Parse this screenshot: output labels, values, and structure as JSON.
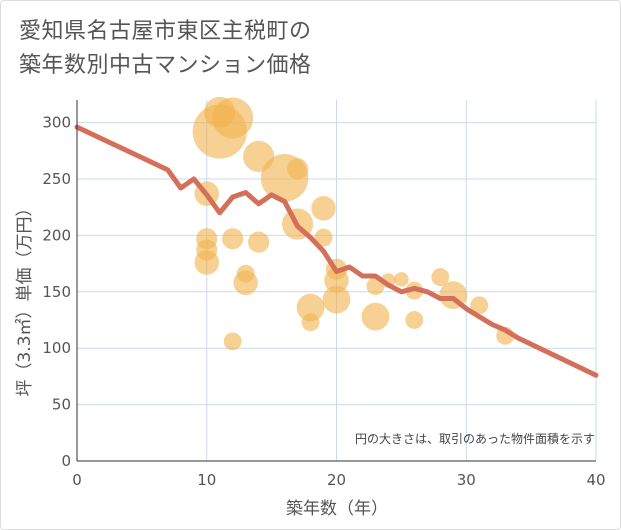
{
  "title_lines": [
    "愛知県名古屋市東区主税町の",
    "築年数別中古マンション価格"
  ],
  "chart_data": {
    "type": "scatter",
    "title": "愛知県名古屋市東区主税町の築年数別中古マンション価格",
    "xlabel": "築年数（年）",
    "ylabel": "坪（3.3㎡）単価（万円）",
    "xlim": [
      0,
      40
    ],
    "ylim": [
      0,
      320
    ],
    "xticks": [
      0,
      10,
      20,
      30,
      40
    ],
    "yticks": [
      0,
      50,
      100,
      150,
      200,
      250,
      300
    ],
    "grid": true,
    "note": "円の大きさは、取引のあった物件面積を示す",
    "colors": {
      "bubble": "#f2b24d",
      "line": "#d4705a",
      "grid": "#c9d9ec"
    },
    "series": [
      {
        "type": "bubble",
        "points": [
          {
            "x": 10,
            "y": 237,
            "size": 5
          },
          {
            "x": 10,
            "y": 197,
            "size": 4
          },
          {
            "x": 10,
            "y": 187,
            "size": 4
          },
          {
            "x": 10,
            "y": 176,
            "size": 5
          },
          {
            "x": 11,
            "y": 309,
            "size": 7
          },
          {
            "x": 11,
            "y": 292,
            "size": 14
          },
          {
            "x": 12,
            "y": 304,
            "size": 10
          },
          {
            "x": 12,
            "y": 197,
            "size": 4
          },
          {
            "x": 12,
            "y": 106,
            "size": 3
          },
          {
            "x": 13,
            "y": 166,
            "size": 3
          },
          {
            "x": 13,
            "y": 158,
            "size": 5
          },
          {
            "x": 14,
            "y": 270,
            "size": 7
          },
          {
            "x": 14,
            "y": 194,
            "size": 4
          },
          {
            "x": 16,
            "y": 251,
            "size": 12
          },
          {
            "x": 17,
            "y": 259,
            "size": 4
          },
          {
            "x": 17,
            "y": 210,
            "size": 7
          },
          {
            "x": 18,
            "y": 136,
            "size": 6
          },
          {
            "x": 18,
            "y": 123,
            "size": 3
          },
          {
            "x": 19,
            "y": 224,
            "size": 5
          },
          {
            "x": 19,
            "y": 198,
            "size": 3
          },
          {
            "x": 20,
            "y": 170,
            "size": 4
          },
          {
            "x": 20,
            "y": 160,
            "size": 5
          },
          {
            "x": 20,
            "y": 143,
            "size": 6
          },
          {
            "x": 23,
            "y": 128,
            "size": 6
          },
          {
            "x": 23,
            "y": 155,
            "size": 3
          },
          {
            "x": 24,
            "y": 160,
            "size": 2
          },
          {
            "x": 25,
            "y": 161,
            "size": 2
          },
          {
            "x": 26,
            "y": 151,
            "size": 3
          },
          {
            "x": 26,
            "y": 125,
            "size": 3
          },
          {
            "x": 28,
            "y": 163,
            "size": 3
          },
          {
            "x": 29,
            "y": 147,
            "size": 6
          },
          {
            "x": 31,
            "y": 138,
            "size": 3
          },
          {
            "x": 33,
            "y": 111,
            "size": 3
          }
        ]
      },
      {
        "type": "line",
        "points": [
          {
            "x": 0,
            "y": 296
          },
          {
            "x": 7,
            "y": 258
          },
          {
            "x": 8,
            "y": 242
          },
          {
            "x": 9,
            "y": 250
          },
          {
            "x": 10,
            "y": 236
          },
          {
            "x": 11,
            "y": 220
          },
          {
            "x": 12,
            "y": 234
          },
          {
            "x": 13,
            "y": 238
          },
          {
            "x": 14,
            "y": 228
          },
          {
            "x": 15,
            "y": 236
          },
          {
            "x": 16,
            "y": 230
          },
          {
            "x": 17,
            "y": 208
          },
          {
            "x": 18,
            "y": 198
          },
          {
            "x": 19,
            "y": 186
          },
          {
            "x": 20,
            "y": 168
          },
          {
            "x": 21,
            "y": 172
          },
          {
            "x": 22,
            "y": 164
          },
          {
            "x": 23,
            "y": 164
          },
          {
            "x": 24,
            "y": 156
          },
          {
            "x": 25,
            "y": 150
          },
          {
            "x": 26,
            "y": 153
          },
          {
            "x": 27,
            "y": 150
          },
          {
            "x": 28,
            "y": 144
          },
          {
            "x": 29,
            "y": 144
          },
          {
            "x": 30,
            "y": 135
          },
          {
            "x": 31,
            "y": 128
          },
          {
            "x": 32,
            "y": 121
          },
          {
            "x": 33,
            "y": 116
          },
          {
            "x": 34,
            "y": 109
          },
          {
            "x": 40,
            "y": 76
          }
        ]
      }
    ]
  }
}
